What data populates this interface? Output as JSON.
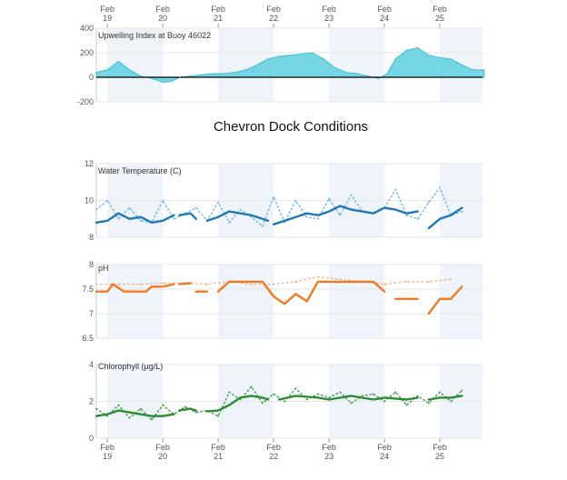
{
  "title": "Chevron Dock Conditions",
  "colors": {
    "upwelling": "#5ecfdf",
    "upwelling_stroke": "#3fbfd3",
    "temperature": "#1f77b4",
    "temperature_raw": "#6fb6e8",
    "ph": "#f07a22",
    "ph_raw": "#f5a566",
    "chlorophyll": "#2e8b34",
    "chlorophyll_raw": "#3f9a45",
    "band": "#eef4fa",
    "grid": "#e6e6e6"
  },
  "date_ticks": [
    {
      "month": "Feb",
      "day": "19"
    },
    {
      "month": "Feb",
      "day": "20"
    },
    {
      "month": "Feb",
      "day": "21"
    },
    {
      "month": "Feb",
      "day": "22"
    },
    {
      "month": "Feb",
      "day": "23"
    },
    {
      "month": "Feb",
      "day": "24"
    },
    {
      "month": "Feb",
      "day": "25"
    }
  ],
  "chart_data": [
    {
      "type": "area",
      "title": "Upwelling Index at Buoy 46022",
      "xlabel": "",
      "ylabel": "",
      "x_ticks": [
        "Feb 19",
        "Feb 20",
        "Feb 21",
        "Feb 22",
        "Feb 23",
        "Feb 24",
        "Feb 25"
      ],
      "ylim": [
        -200,
        400
      ],
      "y_ticks": [
        -200,
        0,
        200,
        400
      ],
      "x": [
        18.8,
        19.0,
        19.2,
        19.4,
        19.6,
        19.8,
        20.0,
        20.15,
        20.3,
        20.5,
        20.7,
        20.9,
        21.1,
        21.3,
        21.5,
        21.7,
        21.9,
        22.1,
        22.3,
        22.5,
        22.7,
        22.9,
        23.1,
        23.3,
        23.5,
        23.7,
        23.9,
        24.05,
        24.2,
        24.4,
        24.6,
        24.8,
        25.0,
        25.2,
        25.4,
        25.6,
        25.8
      ],
      "values": [
        40,
        60,
        130,
        60,
        10,
        -10,
        -40,
        -35,
        0,
        10,
        20,
        30,
        30,
        40,
        60,
        100,
        150,
        170,
        180,
        190,
        200,
        150,
        80,
        40,
        30,
        10,
        -10,
        30,
        150,
        220,
        240,
        180,
        160,
        150,
        100,
        60,
        60
      ]
    },
    {
      "type": "line",
      "title": "Water Temperature (C)",
      "ylim": [
        8,
        12
      ],
      "y_ticks": [
        8,
        10,
        12
      ],
      "series": [
        {
          "role": "smoothed",
          "x": [
            18.8,
            19.0,
            19.2,
            19.4,
            19.6,
            19.8,
            20.0,
            20.2
          ],
          "values": [
            8.8,
            8.9,
            9.3,
            9.0,
            9.1,
            8.8,
            8.9,
            9.2
          ]
        },
        {
          "role": "smoothed",
          "x": [
            20.3,
            20.5,
            20.6
          ],
          "values": [
            9.2,
            9.3,
            9.0
          ]
        },
        {
          "role": "smoothed",
          "x": [
            20.8,
            21.0,
            21.2,
            21.4,
            21.6,
            21.8,
            21.9
          ],
          "values": [
            8.9,
            9.1,
            9.4,
            9.3,
            9.2,
            9.0,
            8.9
          ]
        },
        {
          "role": "smoothed",
          "x": [
            22.0,
            22.2,
            22.4,
            22.6,
            22.8,
            23.0,
            23.2,
            23.4,
            23.6,
            23.8,
            24.0,
            24.2,
            24.4,
            24.6
          ],
          "values": [
            8.7,
            8.9,
            9.1,
            9.3,
            9.2,
            9.4,
            9.7,
            9.5,
            9.4,
            9.3,
            9.6,
            9.5,
            9.3,
            9.4
          ]
        },
        {
          "role": "smoothed",
          "x": [
            24.8,
            25.0,
            25.2,
            25.4
          ],
          "values": [
            8.5,
            9.0,
            9.2,
            9.6
          ]
        },
        {
          "role": "raw",
          "x": [
            18.8,
            19.0,
            19.2,
            19.4,
            19.6,
            19.8,
            20.0,
            20.2,
            20.6,
            20.8,
            21.0,
            21.2,
            21.4,
            21.6,
            21.8,
            22.0,
            22.2,
            22.4,
            22.6,
            22.8,
            23.0,
            23.2,
            23.4,
            23.6,
            23.8,
            24.0,
            24.2,
            24.4,
            24.6,
            24.8,
            25.0,
            25.2,
            25.4
          ],
          "values": [
            9.5,
            10.0,
            9.0,
            9.6,
            8.9,
            8.8,
            10.0,
            9.0,
            9.6,
            8.9,
            9.9,
            8.8,
            9.5,
            9.1,
            8.6,
            10.2,
            8.8,
            10.0,
            9.1,
            9.0,
            10.1,
            9.2,
            10.3,
            9.4,
            9.3,
            9.6,
            10.6,
            9.2,
            9.0,
            9.9,
            10.7,
            9.2,
            9.4
          ]
        }
      ]
    },
    {
      "type": "line",
      "title": "pH",
      "ylim": [
        6.5,
        8
      ],
      "y_ticks": [
        6.5,
        7,
        7.5,
        8
      ],
      "series": [
        {
          "role": "smoothed",
          "x": [
            18.8,
            19.0,
            19.1,
            19.3,
            19.5,
            19.7,
            19.8,
            20.0,
            20.2
          ],
          "values": [
            7.45,
            7.45,
            7.6,
            7.45,
            7.45,
            7.45,
            7.55,
            7.55,
            7.6
          ]
        },
        {
          "role": "smoothed",
          "x": [
            20.3,
            20.5
          ],
          "values": [
            7.6,
            7.62
          ]
        },
        {
          "role": "smoothed",
          "x": [
            20.6,
            20.8
          ],
          "values": [
            7.45,
            7.45
          ]
        },
        {
          "role": "smoothed",
          "x": [
            21.0,
            21.2,
            21.4,
            21.6,
            21.8,
            22.0,
            22.2,
            22.4,
            22.6,
            22.8,
            23.0,
            23.4,
            23.8,
            24.0
          ],
          "values": [
            7.45,
            7.65,
            7.65,
            7.65,
            7.65,
            7.35,
            7.2,
            7.4,
            7.25,
            7.65,
            7.65,
            7.65,
            7.65,
            7.45
          ]
        },
        {
          "role": "smoothed",
          "x": [
            24.2,
            24.4,
            24.6
          ],
          "values": [
            7.3,
            7.3,
            7.3
          ]
        },
        {
          "role": "smoothed",
          "x": [
            24.8,
            25.0,
            25.2,
            25.4
          ],
          "values": [
            7.0,
            7.3,
            7.3,
            7.55
          ]
        },
        {
          "role": "raw",
          "x": [
            18.8,
            19.2,
            19.6,
            20.0,
            20.4,
            20.8,
            21.2,
            21.6,
            22.0,
            22.4,
            22.8,
            23.2,
            23.6,
            24.0,
            24.4,
            24.8,
            25.2
          ],
          "values": [
            7.6,
            7.6,
            7.6,
            7.62,
            7.62,
            7.6,
            7.65,
            7.6,
            7.6,
            7.65,
            7.75,
            7.7,
            7.65,
            7.6,
            7.65,
            7.65,
            7.7
          ]
        }
      ]
    },
    {
      "type": "line",
      "title": "Chlorophyll (µg/L)",
      "ylim": [
        0,
        4
      ],
      "y_ticks": [
        0,
        2,
        4
      ],
      "series": [
        {
          "role": "smoothed",
          "x": [
            18.8,
            19.0,
            19.2,
            19.4,
            19.6,
            19.8,
            20.0,
            20.2
          ],
          "values": [
            1.2,
            1.3,
            1.5,
            1.4,
            1.3,
            1.2,
            1.2,
            1.3
          ]
        },
        {
          "role": "smoothed",
          "x": [
            20.3,
            20.5,
            20.6
          ],
          "values": [
            1.5,
            1.6,
            1.5
          ]
        },
        {
          "role": "smoothed",
          "x": [
            20.8,
            21.0,
            21.2,
            21.4,
            21.6,
            21.8,
            21.9
          ],
          "values": [
            1.45,
            1.5,
            1.8,
            2.2,
            2.3,
            2.2,
            2.1
          ]
        },
        {
          "role": "smoothed",
          "x": [
            22.1,
            22.4,
            22.8,
            23.0,
            23.4,
            23.8,
            24.0,
            24.4,
            24.6
          ],
          "values": [
            2.1,
            2.3,
            2.2,
            2.1,
            2.3,
            2.1,
            2.2,
            2.1,
            2.2
          ]
        },
        {
          "role": "smoothed",
          "x": [
            24.8,
            25.0,
            25.2,
            25.4
          ],
          "values": [
            2.1,
            2.2,
            2.2,
            2.3
          ]
        },
        {
          "role": "raw",
          "x": [
            18.8,
            19.0,
            19.2,
            19.4,
            19.6,
            19.8,
            20.0,
            20.2,
            20.4,
            20.6,
            20.8,
            21.0,
            21.2,
            21.4,
            21.6,
            21.8,
            22.0,
            22.2,
            22.4,
            22.6,
            22.8,
            23.0,
            23.2,
            23.4,
            23.6,
            23.8,
            24.0,
            24.2,
            24.4,
            24.6,
            24.8,
            25.0,
            25.2,
            25.4
          ],
          "values": [
            1.6,
            1.2,
            1.8,
            1.1,
            1.6,
            1.0,
            1.8,
            1.3,
            1.7,
            1.4,
            1.5,
            1.2,
            2.5,
            2.1,
            2.8,
            1.9,
            2.4,
            2.0,
            2.7,
            2.1,
            2.4,
            2.2,
            2.5,
            1.9,
            2.3,
            2.4,
            2.0,
            2.5,
            1.8,
            2.3,
            1.9,
            2.5,
            2.0,
            2.6
          ]
        }
      ]
    }
  ]
}
